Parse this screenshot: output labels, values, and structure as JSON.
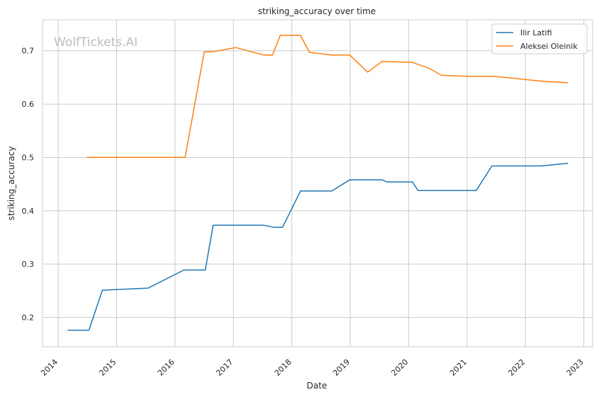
{
  "chart_data": {
    "type": "line",
    "title": "striking_accuracy over time",
    "xlabel": "Date",
    "ylabel": "striking_accuracy",
    "watermark": "WolfTickets.AI",
    "x_ticks": [
      "2014",
      "2015",
      "2016",
      "2017",
      "2018",
      "2019",
      "2020",
      "2021",
      "2022",
      "2023"
    ],
    "y_ticks": [
      0.2,
      0.3,
      0.4,
      0.5,
      0.6,
      0.7
    ],
    "xlim": [
      "2013-09-25",
      "2023-02-25"
    ],
    "ylim": [
      0.145,
      0.758
    ],
    "grid": true,
    "legend_position": "top-right",
    "series": [
      {
        "name": "Ilir Latifi",
        "color": "#1f77b4",
        "points": [
          [
            "2014-03-01",
            0.176
          ],
          [
            "2014-07-12",
            0.176
          ],
          [
            "2014-10-04",
            0.251
          ],
          [
            "2015-07-18",
            0.255
          ],
          [
            "2016-02-27",
            0.289
          ],
          [
            "2016-07-09",
            0.289
          ],
          [
            "2016-08-27",
            0.373
          ],
          [
            "2017-07-08",
            0.373
          ],
          [
            "2017-09-09",
            0.369
          ],
          [
            "2017-11-04",
            0.369
          ],
          [
            "2018-02-24",
            0.437
          ],
          [
            "2018-09-08",
            0.437
          ],
          [
            "2018-12-29",
            0.458
          ],
          [
            "2019-07-20",
            0.458
          ],
          [
            "2019-08-17",
            0.454
          ],
          [
            "2020-01-25",
            0.454
          ],
          [
            "2020-02-29",
            0.438
          ],
          [
            "2021-02-27",
            0.438
          ],
          [
            "2021-06-05",
            0.484
          ],
          [
            "2022-04-09",
            0.484
          ],
          [
            "2022-09-24",
            0.489
          ]
        ]
      },
      {
        "name": "Aleksei Oleinik",
        "color": "#ff7f0e",
        "points": [
          [
            "2014-06-28",
            0.5
          ],
          [
            "2016-03-05",
            0.5
          ],
          [
            "2016-07-02",
            0.698
          ],
          [
            "2016-08-27",
            0.698
          ],
          [
            "2017-01-15",
            0.706
          ],
          [
            "2017-07-08",
            0.692
          ],
          [
            "2017-09-02",
            0.692
          ],
          [
            "2017-10-21",
            0.729
          ],
          [
            "2018-02-24",
            0.729
          ],
          [
            "2018-04-21",
            0.697
          ],
          [
            "2018-09-08",
            0.692
          ],
          [
            "2018-12-29",
            0.692
          ],
          [
            "2019-04-20",
            0.66
          ],
          [
            "2019-07-20",
            0.68
          ],
          [
            "2020-01-25",
            0.678
          ],
          [
            "2020-05-09",
            0.667
          ],
          [
            "2020-07-25",
            0.654
          ],
          [
            "2021-01-20",
            0.652
          ],
          [
            "2021-06-05",
            0.652
          ],
          [
            "2021-07-24",
            0.651
          ],
          [
            "2022-04-09",
            0.643
          ],
          [
            "2022-09-24",
            0.64
          ]
        ]
      }
    ]
  }
}
